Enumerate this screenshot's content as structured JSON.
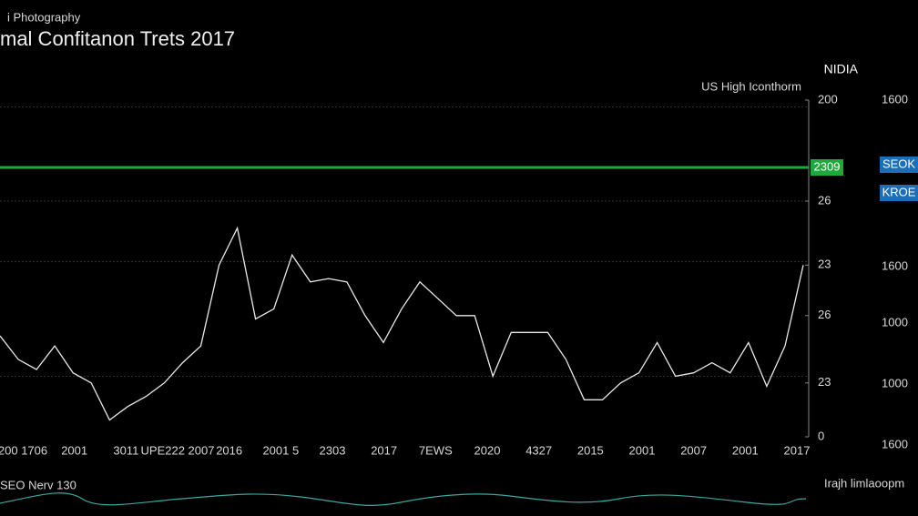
{
  "chart_data": {
    "type": "line",
    "brand": "i Photography",
    "title": "mal Confitanon Trets 2017",
    "corner_label": "NIDIA",
    "subtitle": "US High Iconthorm",
    "series": [
      {
        "name": "US High Iconthorm",
        "color": "#e8e8e8",
        "values": [
          30,
          23,
          20,
          27,
          19,
          16,
          5,
          9,
          12,
          16,
          22,
          27,
          51,
          62,
          35,
          38,
          54,
          46,
          47,
          46,
          36,
          28,
          38,
          46,
          41,
          36,
          36,
          18,
          31,
          31,
          31,
          23,
          11,
          11,
          16,
          19,
          28,
          18,
          19,
          22,
          19,
          28,
          15,
          27,
          51
        ]
      }
    ],
    "ylim": [
      0,
      100
    ],
    "yticks": [
      {
        "value": 100,
        "label": "200"
      },
      {
        "value": 70,
        "label": "26"
      },
      {
        "value": 51,
        "label": "23"
      },
      {
        "value": 36,
        "label": "26"
      },
      {
        "value": 16,
        "label": "23"
      },
      0
    ],
    "grid_values": [
      98,
      70,
      52,
      18
    ],
    "reference_line": {
      "value": 80,
      "label": "2309",
      "color": "#1fa83c"
    },
    "badges": [
      "SEOK",
      "KROE"
    ],
    "right_labels": [
      "1600",
      "1600",
      "1000",
      "1000",
      "1600"
    ],
    "x_labels": [
      "200 1706",
      "2001",
      "3011",
      "UPE222 2007",
      "2016",
      "2001 5",
      "2303",
      "2017",
      "7EWS",
      "2020",
      "4327",
      "2015",
      "2001",
      "2007",
      "2001",
      "2017"
    ],
    "footer_left": "SEO Nerv 130",
    "footer_right": "Irajh limlaoopm"
  }
}
